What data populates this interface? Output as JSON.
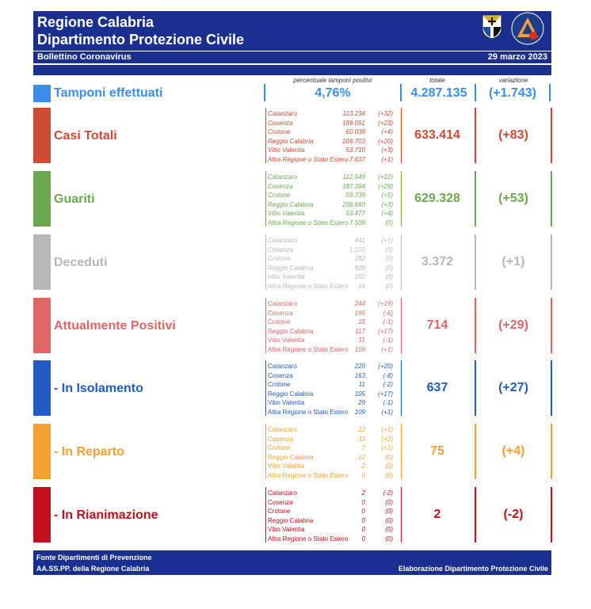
{
  "header": {
    "region": "Regione Calabria",
    "department": "Dipartimento Protezione Civile",
    "bulletin": "Bollettino Coronavirus",
    "date": "29 marzo 2023"
  },
  "columns": {
    "pct_label": "percentuale tamponi positivi",
    "total_label": "totale",
    "var_label": "variazione"
  },
  "tamponi": {
    "label": "Tamponi effettuati",
    "pct": "4,76%",
    "total": "4.287.135",
    "var": "(+1.743)"
  },
  "colors": {
    "header": "#1a2f8f",
    "tamponi": "#3b8ded",
    "casi": "#d14a33",
    "guariti": "#6aa84f",
    "deceduti": "#b7b7b7",
    "positivi": "#e06666",
    "isolamento": "#1f5bc4",
    "reparto": "#f6a12d",
    "rianimazione": "#c0101b"
  },
  "provinces": [
    "Catanzaro",
    "Cosenza",
    "Crotone",
    "Reggio Calabria",
    "Vibo Valentia",
    "Altra Regione o Stato Estero"
  ],
  "categories": [
    {
      "label": "Casi Totali",
      "total": "633.414",
      "var": "(+83)",
      "values": [
        "113.234",
        "189.091",
        "60.039",
        "209.703",
        "53.710",
        "7.637"
      ],
      "deltas": [
        "(+32)",
        "(+23)",
        "(+4)",
        "(+20)",
        "(+3)",
        "(+1)"
      ]
    },
    {
      "label": "Guariti",
      "total": "629.328",
      "var": "(+53)",
      "values": [
        "112.549",
        "187.394",
        "59.739",
        "208.660",
        "53.477",
        "7.509"
      ],
      "deltas": [
        "(+12)",
        "(+29)",
        "(+5)",
        "(+3)",
        "(+4)",
        "(0)"
      ]
    },
    {
      "label": "Deceduti",
      "total": "3.372",
      "var": "(+1)",
      "values": [
        "441",
        "1.502",
        "282",
        "926",
        "202",
        "19"
      ],
      "deltas": [
        "(+1)",
        "(0)",
        "(0)",
        "(0)",
        "(0)",
        "(0)"
      ]
    },
    {
      "label": "Attualmente Positivi",
      "total": "714",
      "var": "(+29)",
      "values": [
        "244",
        "195",
        "18",
        "117",
        "31",
        "109"
      ],
      "deltas": [
        "(+19)",
        "(-6)",
        "(-1)",
        "(+17)",
        "(-1)",
        "(+1)"
      ]
    },
    {
      "label": "- In Isolamento",
      "total": "637",
      "var": "(+27)",
      "values": [
        "220",
        "163",
        "11",
        "105",
        "29",
        "109"
      ],
      "deltas": [
        "(+20)",
        "(-8)",
        "(-2)",
        "(+17)",
        "(-1)",
        "(+1)"
      ]
    },
    {
      "label": "- In Reparto",
      "total": "75",
      "var": "(+4)",
      "values": [
        "22",
        "32",
        "7",
        "12",
        "2",
        "0"
      ],
      "deltas": [
        "(+1)",
        "(+2)",
        "(+1)",
        "(0)",
        "(0)",
        "(0)"
      ]
    },
    {
      "label": "- In Rianimazione",
      "total": "2",
      "var": "(-2)",
      "values": [
        "2",
        "0",
        "0",
        "0",
        "0",
        "0"
      ],
      "deltas": [
        "(-2)",
        "(0)",
        "(0)",
        "(0)",
        "(0)",
        "(0)"
      ]
    }
  ],
  "footer": {
    "source1": "Fonte Dipartimenti di Prevenzione",
    "source2": "AA.SS.PP.  della Regione Calabria",
    "credit": "Elaborazione Dipartimento Protezione Civile"
  }
}
